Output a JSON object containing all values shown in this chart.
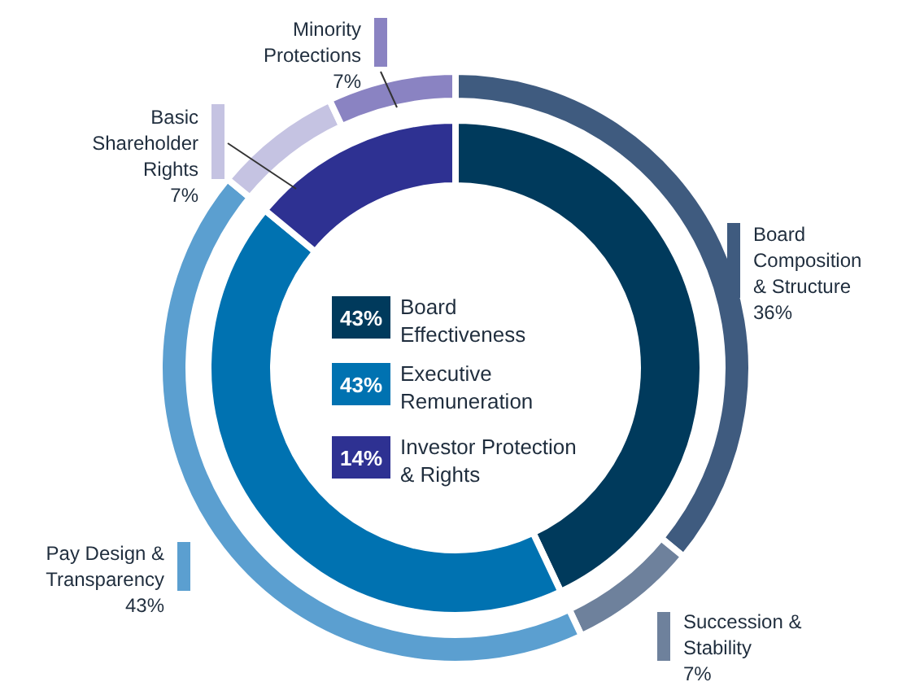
{
  "chart_data": [
    {
      "type": "donut",
      "categories": [
        "Board Effectiveness",
        "Executive Remuneration",
        "Investor Protection & Rights"
      ],
      "values": [
        43,
        43,
        14
      ],
      "colors": [
        "#003a5c",
        "#0072b1",
        "#2e3192"
      ],
      "value_labels": [
        "43%",
        "43%",
        "14%"
      ],
      "legend": "center"
    },
    {
      "type": "donut",
      "categories": [
        "Board Composition & Structure",
        "Succession & Stability",
        "Pay Design & Transparency",
        "Basic Shareholder Rights",
        "Minority Protections"
      ],
      "values": [
        36,
        7,
        43,
        7,
        7
      ],
      "colors": [
        "#3f5b7f",
        "#6e819c",
        "#5b9fd0",
        "#c5c3e2",
        "#8a83c2"
      ],
      "value_labels": [
        "36%",
        "7%",
        "43%",
        "7%",
        "7%"
      ]
    }
  ]
}
